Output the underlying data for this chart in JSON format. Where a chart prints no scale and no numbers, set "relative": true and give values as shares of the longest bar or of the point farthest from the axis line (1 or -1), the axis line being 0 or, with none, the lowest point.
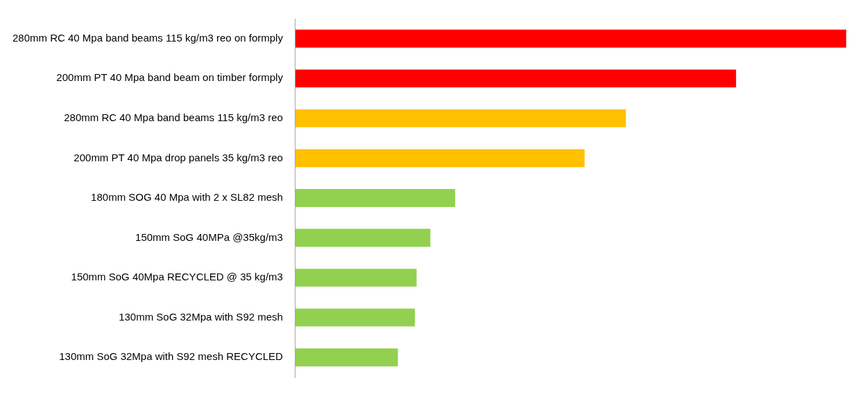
{
  "chart_data": {
    "type": "bar",
    "orientation": "horizontal",
    "relative": true,
    "legend": false,
    "categories": [
      "280mm RC 40 Mpa band beams 115 kg/m3 reo on formply",
      "200mm PT 40 Mpa band beam on timber formply",
      "280mm RC 40 Mpa band beams 115 kg/m3 reo",
      "200mm PT 40 Mpa drop panels 35 kg/m3 reo",
      "180mm SOG 40 Mpa with 2 x SL82 mesh",
      "150mm SoG 40MPa @35kg/m3",
      "150mm SoG 40Mpa RECYCLED @ 35 kg/m3",
      "130mm SoG 32Mpa with S92 mesh",
      "130mm SoG 32Mpa with S92 mesh RECYCLED"
    ],
    "values": [
      1,
      0.8,
      0.6,
      0.525,
      0.29,
      0.245,
      0.22,
      0.217,
      0.186
    ],
    "colors": [
      "#ff0000",
      "#ff0000",
      "#ffc000",
      "#ffc000",
      "#92d050",
      "#92d050",
      "#92d050",
      "#92d050",
      "#92d050"
    ]
  }
}
